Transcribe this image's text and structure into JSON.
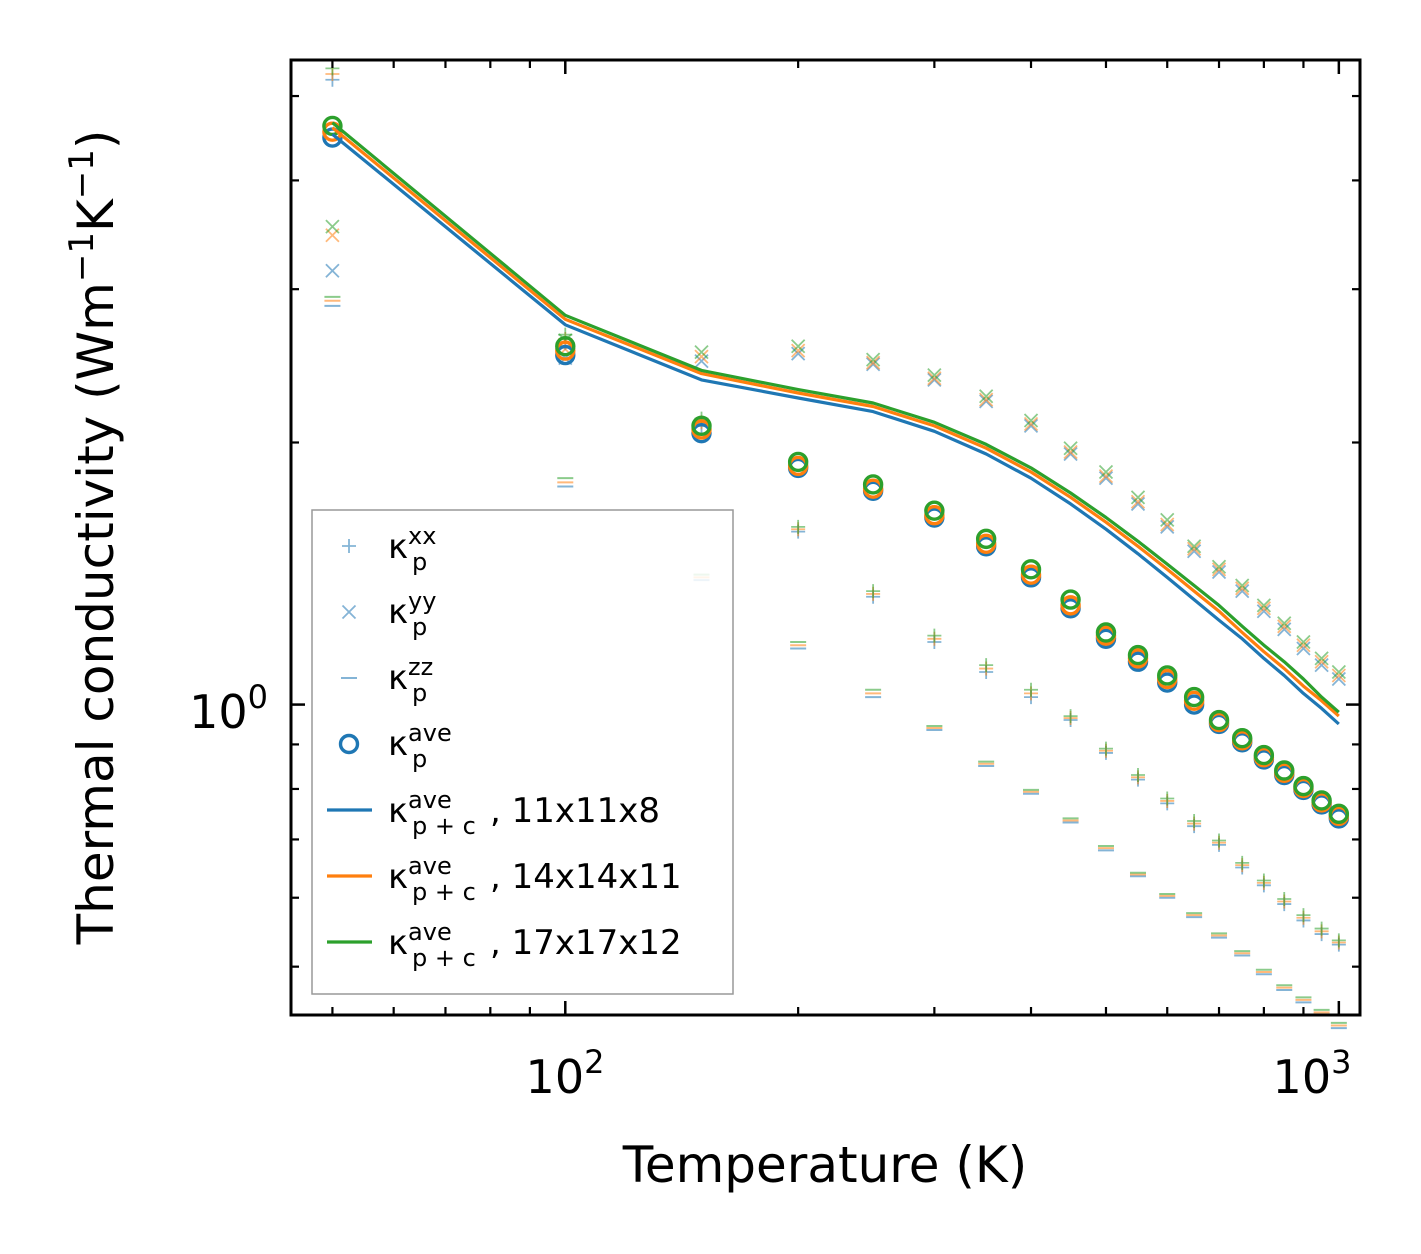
{
  "chart_data": {
    "type": "scatter",
    "xscale": "log",
    "yscale": "log",
    "xlim": [
      44.2,
      1065
    ],
    "ylim": [
      0.44,
      5.5
    ],
    "xlabel": "Temperature (K)",
    "ylabel": {
      "base": "Thermal conductivity (Wm",
      "sup1": "−1",
      "mid": "K",
      "sup2": "−1",
      "end": ")"
    },
    "xticks": [
      {
        "value": 100,
        "base": "10",
        "exp": "2"
      },
      {
        "value": 1000,
        "base": "10",
        "exp": "3"
      }
    ],
    "yticks": [
      {
        "value": 1,
        "base": "10",
        "exp": "0"
      }
    ],
    "x": [
      50,
      100,
      150,
      200,
      250,
      300,
      350,
      400,
      450,
      500,
      550,
      600,
      650,
      700,
      750,
      800,
      850,
      900,
      950,
      1000
    ],
    "series": [
      {
        "name": "kxx_11",
        "kind": "plus",
        "color": "#1f77b4",
        "values": [
          5.22,
          2.6,
          2.09,
          1.58,
          1.33,
          1.18,
          1.09,
          1.02,
          0.96,
          0.88,
          0.82,
          0.77,
          0.725,
          0.69,
          0.65,
          0.62,
          0.59,
          0.565,
          0.545,
          0.53
        ]
      },
      {
        "name": "kxx_14",
        "kind": "plus",
        "color": "#ff7f0e",
        "values": [
          5.3,
          2.63,
          2.11,
          1.59,
          1.34,
          1.19,
          1.1,
          1.03,
          0.965,
          0.885,
          0.825,
          0.775,
          0.73,
          0.694,
          0.654,
          0.624,
          0.594,
          0.569,
          0.549,
          0.533
        ]
      },
      {
        "name": "kxx_17",
        "kind": "plus",
        "color": "#2ca02c",
        "values": [
          5.38,
          2.66,
          2.13,
          1.6,
          1.35,
          1.2,
          1.11,
          1.04,
          0.97,
          0.89,
          0.83,
          0.78,
          0.735,
          0.698,
          0.658,
          0.628,
          0.598,
          0.573,
          0.553,
          0.536
        ]
      },
      {
        "name": "kyy_11",
        "kind": "x",
        "color": "#1f77b4",
        "values": [
          3.15,
          2.5,
          2.48,
          2.53,
          2.46,
          2.36,
          2.23,
          2.09,
          1.94,
          1.82,
          1.7,
          1.6,
          1.5,
          1.42,
          1.35,
          1.28,
          1.22,
          1.16,
          1.11,
          1.07
        ]
      },
      {
        "name": "kyy_14",
        "kind": "x",
        "color": "#ff7f0e",
        "values": [
          3.46,
          2.56,
          2.51,
          2.55,
          2.47,
          2.37,
          2.24,
          2.1,
          1.95,
          1.83,
          1.71,
          1.61,
          1.51,
          1.43,
          1.36,
          1.29,
          1.23,
          1.17,
          1.12,
          1.08
        ]
      },
      {
        "name": "kyy_17",
        "kind": "x",
        "color": "#2ca02c",
        "values": [
          3.54,
          2.62,
          2.54,
          2.58,
          2.49,
          2.39,
          2.26,
          2.12,
          1.97,
          1.85,
          1.73,
          1.63,
          1.52,
          1.44,
          1.37,
          1.3,
          1.24,
          1.18,
          1.13,
          1.09
        ]
      },
      {
        "name": "kzz_11",
        "kind": "dash",
        "color": "#1f77b4",
        "values": [
          2.87,
          1.78,
          1.39,
          1.16,
          1.02,
          0.935,
          0.85,
          0.79,
          0.732,
          0.68,
          0.635,
          0.6,
          0.57,
          0.54,
          0.515,
          0.49,
          0.47,
          0.455,
          0.44,
          0.425
        ]
      },
      {
        "name": "kzz_14",
        "kind": "dash",
        "color": "#ff7f0e",
        "values": [
          2.91,
          1.8,
          1.4,
          1.17,
          1.03,
          0.94,
          0.855,
          0.794,
          0.736,
          0.684,
          0.638,
          0.603,
          0.573,
          0.543,
          0.518,
          0.493,
          0.473,
          0.458,
          0.443,
          0.428
        ]
      },
      {
        "name": "kzz_17",
        "kind": "dash",
        "color": "#2ca02c",
        "values": [
          2.94,
          1.82,
          1.41,
          1.18,
          1.04,
          0.945,
          0.86,
          0.798,
          0.74,
          0.688,
          0.641,
          0.606,
          0.576,
          0.546,
          0.521,
          0.496,
          0.476,
          0.461,
          0.446,
          0.431
        ]
      },
      {
        "name": "kave_11",
        "kind": "circle",
        "color": "#1f77b4",
        "values": [
          4.48,
          2.52,
          2.05,
          1.87,
          1.76,
          1.64,
          1.52,
          1.4,
          1.29,
          1.19,
          1.12,
          1.06,
          1.0,
          0.95,
          0.905,
          0.865,
          0.83,
          0.798,
          0.768,
          0.74
        ]
      },
      {
        "name": "kave_14",
        "kind": "circle",
        "color": "#ff7f0e",
        "values": [
          4.55,
          2.55,
          2.07,
          1.88,
          1.77,
          1.65,
          1.53,
          1.41,
          1.3,
          1.2,
          1.13,
          1.07,
          1.01,
          0.955,
          0.91,
          0.87,
          0.835,
          0.802,
          0.772,
          0.745
        ]
      },
      {
        "name": "kave_17",
        "kind": "circle",
        "color": "#2ca02c",
        "values": [
          4.62,
          2.58,
          2.09,
          1.9,
          1.79,
          1.67,
          1.55,
          1.43,
          1.32,
          1.21,
          1.14,
          1.08,
          1.02,
          0.96,
          0.915,
          0.875,
          0.84,
          0.806,
          0.776,
          0.749
        ]
      },
      {
        "name": "kpc_11",
        "kind": "line",
        "color": "#1f77b4",
        "values": [
          4.52,
          2.73,
          2.36,
          2.25,
          2.17,
          2.06,
          1.94,
          1.82,
          1.7,
          1.59,
          1.49,
          1.4,
          1.32,
          1.25,
          1.19,
          1.13,
          1.08,
          1.03,
          0.99,
          0.95
        ]
      },
      {
        "name": "kpc_14",
        "kind": "line",
        "color": "#ff7f0e",
        "values": [
          4.6,
          2.77,
          2.4,
          2.28,
          2.2,
          2.09,
          1.97,
          1.85,
          1.73,
          1.62,
          1.52,
          1.43,
          1.35,
          1.28,
          1.21,
          1.15,
          1.1,
          1.05,
          1.01,
          0.97
        ]
      },
      {
        "name": "kpc_17",
        "kind": "line",
        "color": "#2ca02c",
        "values": [
          4.66,
          2.8,
          2.42,
          2.3,
          2.22,
          2.11,
          1.99,
          1.87,
          1.75,
          1.64,
          1.54,
          1.45,
          1.37,
          1.3,
          1.23,
          1.17,
          1.12,
          1.07,
          1.02,
          0.98
        ]
      }
    ],
    "legend": {
      "placement": "lower-left",
      "entries": [
        {
          "kind": "plus",
          "color": "#1f77b4",
          "base": "κ",
          "sup": "xx",
          "sub": "p",
          "suffix": ""
        },
        {
          "kind": "x",
          "color": "#1f77b4",
          "base": "κ",
          "sup": "yy",
          "sub": "p",
          "suffix": ""
        },
        {
          "kind": "dash",
          "color": "#1f77b4",
          "base": "κ",
          "sup": "zz",
          "sub": "p",
          "suffix": ""
        },
        {
          "kind": "circle",
          "color": "#1f77b4",
          "base": "κ",
          "sup": "ave",
          "sub": "p",
          "suffix": ""
        },
        {
          "kind": "line",
          "color": "#1f77b4",
          "base": "κ",
          "sup": "ave",
          "sub": "p + c",
          "suffix": ", 11x11x8"
        },
        {
          "kind": "line",
          "color": "#ff7f0e",
          "base": "κ",
          "sup": "ave",
          "sub": "p + c",
          "suffix": ", 14x14x11"
        },
        {
          "kind": "line",
          "color": "#2ca02c",
          "base": "κ",
          "sup": "ave",
          "sub": "p + c",
          "suffix": ", 17x17x12"
        }
      ]
    }
  }
}
